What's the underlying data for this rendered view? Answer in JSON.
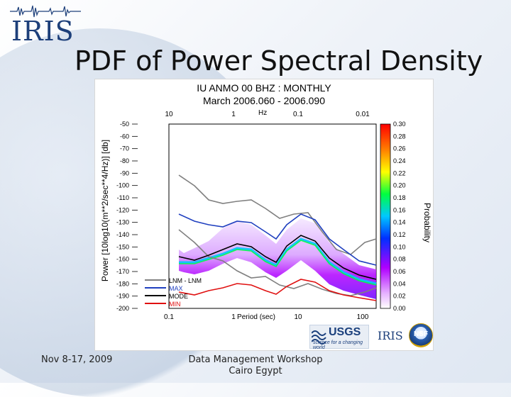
{
  "slide": {
    "logo_text": "IRIS",
    "title": "PDF of Power Spectral Density",
    "footer_left": "Nov 8-17, 2009",
    "footer_center_line1": "Data Management Workshop",
    "footer_center_line2": "Cairo Egypt"
  },
  "figure": {
    "title_line1": "IU ANMO 00 BHZ : MONTHLY",
    "title_line2": "March 2006.060 - 2006.090",
    "top_axis_unit": "Hz",
    "top_axis_ticks": [
      "10",
      "1",
      "0.1",
      "0.01"
    ],
    "bottom_axis_ticks": [
      "0.1",
      "1",
      "10",
      "100"
    ],
    "bottom_axis_label": "Period (sec)",
    "y_axis_label": "Power [10log10(m**2/sec**4/Hz)] [db]",
    "y_ticks": [
      "-50",
      "-60",
      "-70",
      "-80",
      "-90",
      "-100",
      "-110",
      "-120",
      "-130",
      "-140",
      "-150",
      "-160",
      "-170",
      "-180",
      "-190",
      "-200"
    ],
    "legend": [
      {
        "label": "LNM - LNM",
        "color": "#808080"
      },
      {
        "label": "MAX",
        "color": "#1f3fbf"
      },
      {
        "label": "MODE",
        "color": "#000000"
      },
      {
        "label": "MIN",
        "color": "#e01010"
      }
    ],
    "colorbar_label": "Probability",
    "colorbar_ticks": [
      "0.30",
      "0.28",
      "0.26",
      "0.24",
      "0.22",
      "0.20",
      "0.18",
      "0.16",
      "0.14",
      "0.12",
      "0.10",
      "0.08",
      "0.06",
      "0.04",
      "0.02",
      "0.00"
    ]
  },
  "logos": {
    "usgs": "USGS",
    "usgs_sub": "science for a changing world",
    "iris": "IRIS",
    "nsf": "NSF"
  },
  "colors": {
    "title_blue": "#1d3f7a",
    "mode_black": "#000000",
    "max_blue": "#1f3fbf",
    "min_red": "#e01010",
    "model_gray": "#808080"
  }
}
